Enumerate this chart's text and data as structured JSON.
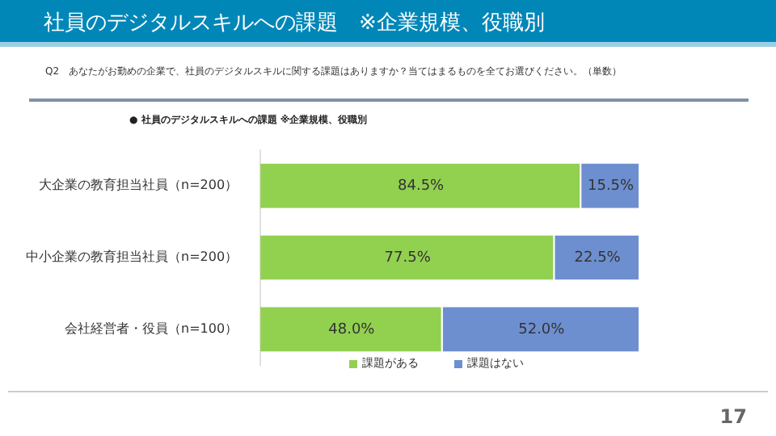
{
  "chart_data": {
    "type": "bar",
    "orientation": "horizontal",
    "stacked": true,
    "title": "社員のデジタルスキルへの課題　※企業規模、役職別",
    "subtitle": "Q2　あなたがお勤めの企業で、社員のデジタルスキルに関する課題はありますか？当てはまるものを全てお選びください。（単数）",
    "annotations": [
      "● 社員のデジタルスキルへの課題 ※企業規模、役職別",
      "17"
    ],
    "categories": [
      "大企業の教育担当社員（n=200）",
      "中小企業の教育担当社員（n=200）",
      "会社経営者・役員（n=100）"
    ],
    "series": [
      {
        "name": "課題がある",
        "color": "#92d050",
        "values": [
          84.5,
          77.5,
          48.0
        ],
        "value_labels": [
          "84.5%",
          "77.5%",
          "48.0%"
        ]
      },
      {
        "name": "課題はない",
        "color": "#6d8fd0",
        "values": [
          15.5,
          22.5,
          52.0
        ],
        "value_labels": [
          "15.5%",
          "22.5%",
          "52.0%"
        ]
      }
    ],
    "xlim": [
      0,
      100
    ],
    "legend": "bottom",
    "data_labels": true
  }
}
